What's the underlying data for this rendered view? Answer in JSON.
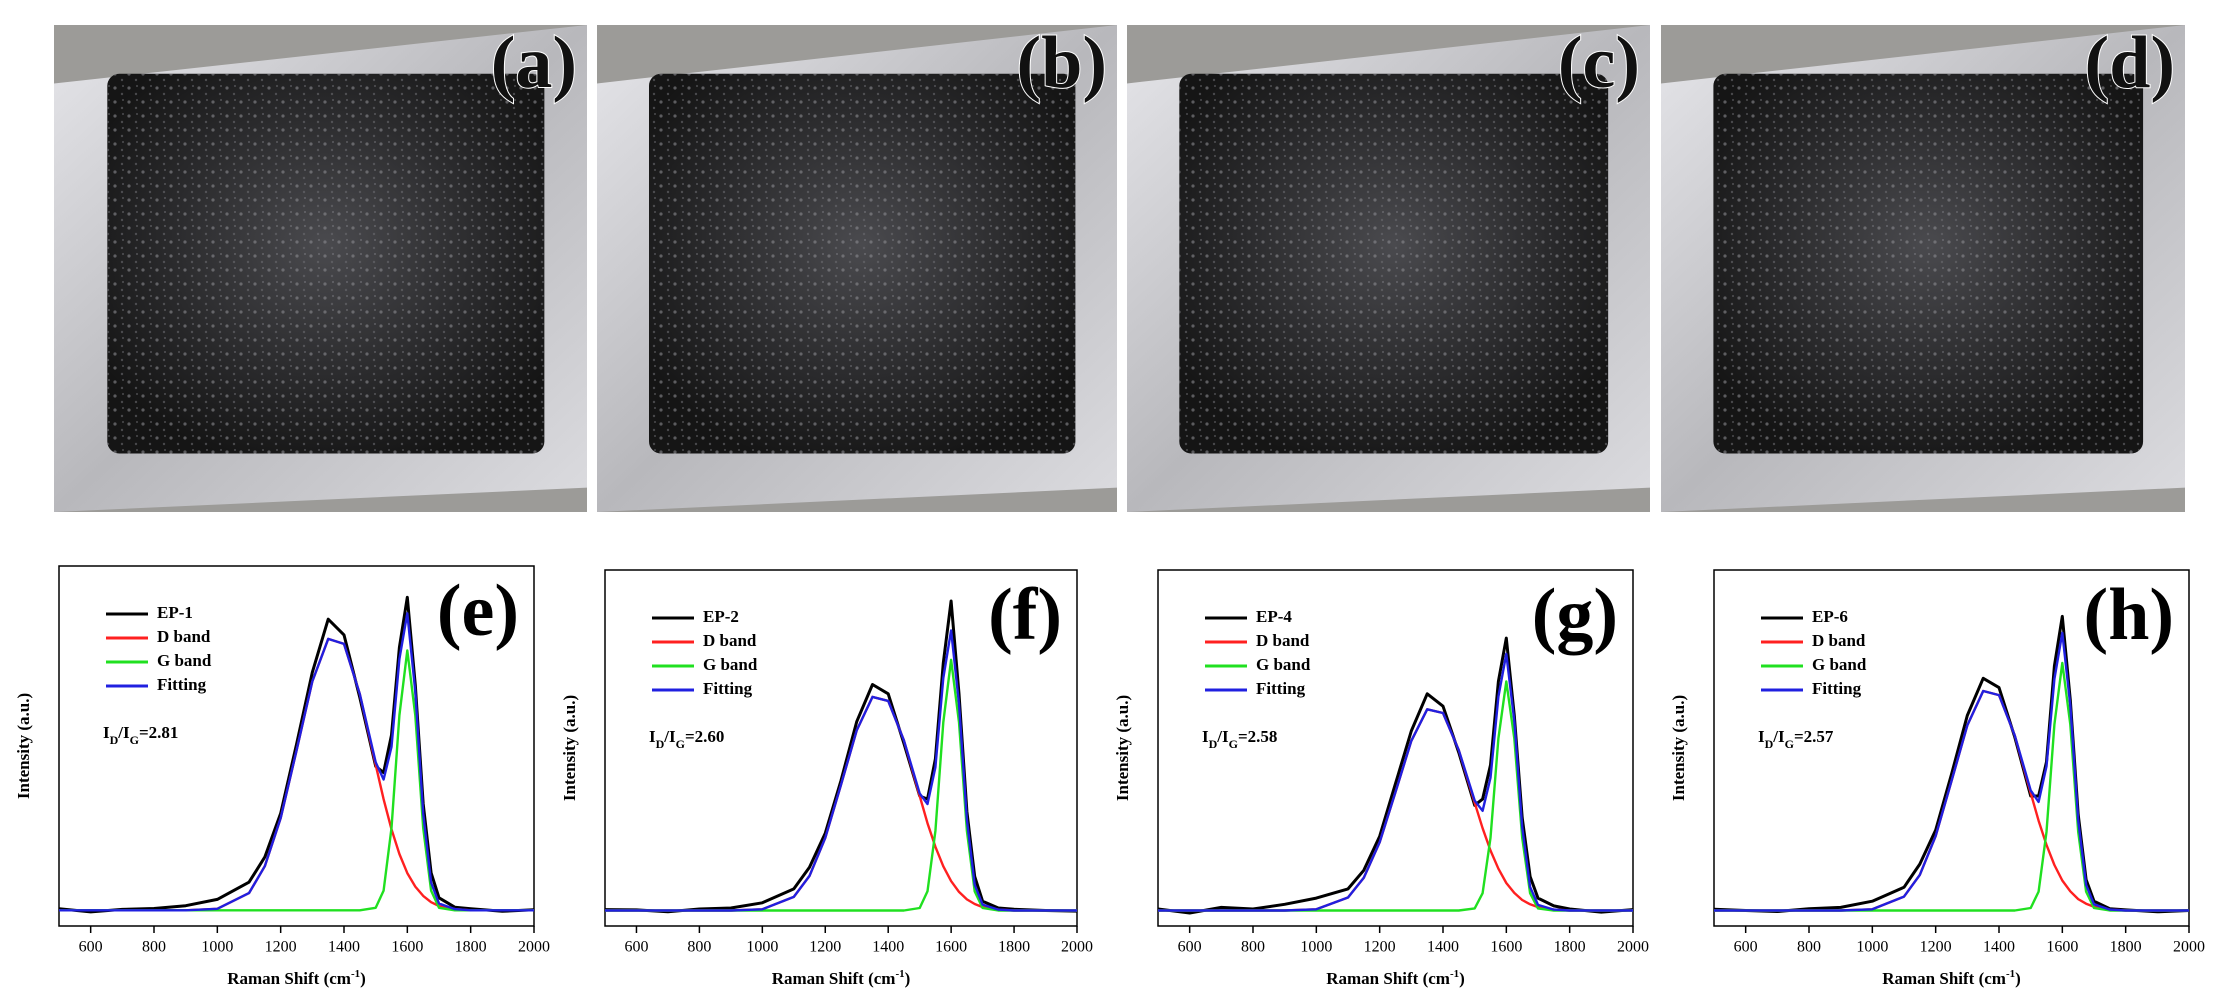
{
  "photos": [
    {
      "label": "(a)"
    },
    {
      "label": "(b)"
    },
    {
      "label": "(c)"
    },
    {
      "label": "(d)"
    }
  ],
  "chart_data": [
    {
      "type": "line",
      "title": "(e)",
      "x": [
        500,
        600,
        700,
        800,
        900,
        1000,
        1100,
        1150,
        1200,
        1250,
        1300,
        1350,
        1400,
        1450,
        1500,
        1525,
        1550,
        1575,
        1600,
        1625,
        1650,
        1675,
        1700,
        1750,
        1800,
        1900,
        2000
      ],
      "xlim": [
        500,
        2000
      ],
      "xticks": [
        600,
        800,
        1000,
        1200,
        1400,
        1600,
        1800,
        2000
      ],
      "ylim": [
        -5,
        110
      ],
      "xlabel_parts": [
        "Raman Shift (cm",
        "-1",
        ")"
      ],
      "ylabel": "Intensity (a.u.)",
      "annotation_parts": [
        "I",
        "D",
        "/I",
        "G",
        "=2.81"
      ],
      "series": [
        {
          "name": "EP-1",
          "color": "#000000",
          "values": [
            0.5,
            -0.5,
            0.3,
            0.6,
            1.5,
            3.5,
            9,
            17,
            31,
            53,
            76,
            93,
            88,
            68,
            46,
            44,
            56,
            84,
            100,
            72,
            34,
            12,
            4,
            1,
            0.5,
            -0.3,
            0.2
          ]
        },
        {
          "name": "D band",
          "color": "#ff2020",
          "values": [
            0,
            0,
            0,
            0,
            0,
            0.5,
            5.5,
            14.1,
            29.5,
            51,
            73.1,
            86.7,
            85.1,
            69.1,
            46.5,
            35.5,
            25.9,
            18,
            11.9,
            7.6,
            4.6,
            2.6,
            1.4,
            0.4,
            0,
            0,
            0
          ]
        },
        {
          "name": "G band",
          "color": "#20e020",
          "values": [
            0,
            0,
            0,
            0,
            0,
            0,
            0,
            0,
            0,
            0,
            0,
            0,
            0,
            0,
            0.8,
            6.3,
            26.3,
            62.3,
            83,
            62.3,
            26.3,
            6.3,
            0.8,
            0,
            0,
            0,
            0
          ]
        },
        {
          "name": "Fitting",
          "color": "#2020e0",
          "values": [
            0,
            0,
            0,
            0,
            0,
            0.5,
            5.5,
            14.1,
            29.5,
            51,
            73.1,
            86.7,
            85.1,
            69.1,
            47.3,
            41.8,
            52.2,
            80.3,
            94.9,
            69.9,
            30.9,
            8.9,
            2.2,
            0.4,
            0,
            0,
            0
          ]
        }
      ]
    },
    {
      "type": "line",
      "title": "(f)",
      "x": [
        500,
        600,
        700,
        800,
        900,
        1000,
        1100,
        1150,
        1200,
        1250,
        1300,
        1350,
        1400,
        1450,
        1500,
        1525,
        1550,
        1575,
        1600,
        1625,
        1650,
        1675,
        1700,
        1750,
        1800,
        1900,
        2000
      ],
      "xlim": [
        500,
        2000
      ],
      "xticks": [
        600,
        800,
        1000,
        1200,
        1400,
        1600,
        1800,
        2000
      ],
      "ylim": [
        -5,
        110
      ],
      "xlabel_parts": [
        "Raman Shift (cm",
        "-1",
        ")"
      ],
      "ylabel": "Intensity (a.u.)",
      "annotation_parts": [
        "I",
        "D",
        "/I",
        "G",
        "=2.60"
      ],
      "series": [
        {
          "name": "EP-2",
          "color": "#000000",
          "values": [
            0.3,
            0.2,
            -0.4,
            0.5,
            0.8,
            2.5,
            7,
            14,
            25,
            42,
            61,
            73,
            70,
            54,
            37,
            36,
            49,
            80,
            100,
            70,
            32,
            11,
            3,
            0.8,
            0.4,
            0,
            -0.2
          ]
        },
        {
          "name": "D band",
          "color": "#ff2020",
          "values": [
            0,
            0,
            0,
            0,
            0,
            0.4,
            4.4,
            11.2,
            23.5,
            40.6,
            58.2,
            69,
            67.7,
            55,
            37,
            28.2,
            20.6,
            14.3,
            9.5,
            6,
            3.6,
            2.1,
            1.1,
            0.3,
            0,
            0,
            0
          ]
        },
        {
          "name": "G band",
          "color": "#20e020",
          "values": [
            0,
            0,
            0,
            0,
            0,
            0,
            0,
            0,
            0,
            0,
            0,
            0,
            0,
            0,
            0.8,
            6.2,
            25.7,
            60.8,
            81,
            60.8,
            25.7,
            6.2,
            0.8,
            0,
            0,
            0,
            0
          ]
        },
        {
          "name": "Fitting",
          "color": "#2020e0",
          "values": [
            0,
            0,
            0,
            0,
            0,
            0.4,
            4.4,
            11.2,
            23.5,
            40.6,
            58.2,
            69,
            67.7,
            55,
            37.8,
            34.4,
            46.3,
            75.1,
            90.5,
            66.8,
            29.3,
            8.3,
            1.9,
            0.3,
            0,
            0,
            0
          ]
        }
      ]
    },
    {
      "type": "line",
      "title": "(g)",
      "x": [
        500,
        600,
        700,
        800,
        900,
        1000,
        1100,
        1150,
        1200,
        1250,
        1300,
        1350,
        1400,
        1450,
        1500,
        1525,
        1550,
        1575,
        1600,
        1625,
        1650,
        1675,
        1700,
        1750,
        1800,
        1900,
        2000
      ],
      "xlim": [
        500,
        2000
      ],
      "xticks": [
        600,
        800,
        1000,
        1200,
        1400,
        1600,
        1800,
        2000
      ],
      "ylim": [
        -5,
        110
      ],
      "xlabel_parts": [
        "Raman Shift (cm",
        "-1",
        ")"
      ],
      "ylabel": "Intensity (a.u.)",
      "annotation_parts": [
        "I",
        "D",
        "/I",
        "G",
        "=2.58"
      ],
      "series": [
        {
          "name": "EP-4",
          "color": "#000000",
          "values": [
            0.5,
            -0.8,
            1,
            0.5,
            2,
            4,
            7,
            13,
            24,
            41,
            58,
            70,
            66,
            51,
            34,
            36,
            47,
            74,
            88,
            63,
            30,
            11,
            4,
            1.5,
            0.5,
            -0.5,
            0.3
          ]
        },
        {
          "name": "D band",
          "color": "#ff2020",
          "values": [
            0,
            0,
            0,
            0,
            0,
            0.4,
            4.2,
            10.6,
            22.1,
            38.3,
            54.8,
            65,
            63.8,
            51.8,
            34.8,
            26.6,
            19.4,
            13.5,
            8.9,
            5.7,
            3.4,
            2,
            1.1,
            0.3,
            0,
            0,
            0
          ]
        },
        {
          "name": "G band",
          "color": "#20e020",
          "values": [
            0,
            0,
            0,
            0,
            0,
            0,
            0,
            0,
            0,
            0,
            0,
            0,
            0,
            0,
            0.7,
            5.6,
            23.5,
            55.6,
            74,
            55.6,
            23.5,
            5.6,
            0.7,
            0,
            0,
            0,
            0
          ]
        },
        {
          "name": "Fitting",
          "color": "#2020e0",
          "values": [
            0,
            0,
            0,
            0,
            0,
            0.4,
            4.2,
            10.6,
            22.1,
            38.3,
            54.8,
            65,
            63.8,
            51.8,
            35.5,
            32.2,
            42.9,
            69.1,
            82.9,
            61.3,
            26.9,
            7.6,
            1.8,
            0.3,
            0,
            0,
            0
          ]
        }
      ]
    },
    {
      "type": "line",
      "title": "(h)",
      "x": [
        500,
        600,
        700,
        800,
        900,
        1000,
        1100,
        1150,
        1200,
        1250,
        1300,
        1350,
        1400,
        1450,
        1500,
        1525,
        1550,
        1575,
        1600,
        1625,
        1650,
        1675,
        1700,
        1750,
        1800,
        1900,
        2000
      ],
      "xlim": [
        500,
        2000
      ],
      "xticks": [
        600,
        800,
        1000,
        1200,
        1400,
        1600,
        1800,
        2000
      ],
      "ylim": [
        -5,
        110
      ],
      "xlabel_parts": [
        "Raman Shift (cm",
        "-1",
        ")"
      ],
      "ylabel": "Intensity (a.u.)",
      "annotation_parts": [
        "I",
        "D",
        "/I",
        "G",
        "=2.57"
      ],
      "series": [
        {
          "name": "EP-6",
          "color": "#000000",
          "values": [
            0.4,
            0,
            -0.3,
            0.6,
            1,
            3,
            7.5,
            15,
            26,
            44,
            63,
            75,
            72,
            56,
            37,
            37,
            48,
            79,
            95,
            68,
            31,
            10,
            3,
            0.6,
            0.2,
            -0.4,
            0
          ]
        },
        {
          "name": "D band",
          "color": "#ff2020",
          "values": [
            0,
            0,
            0,
            0,
            0,
            0.4,
            4.5,
            11.5,
            24.1,
            41.8,
            59.8,
            70.9,
            69.6,
            56.5,
            38,
            29,
            21.2,
            14.7,
            9.7,
            6.2,
            3.7,
            2.2,
            1.2,
            0.3,
            0,
            0,
            0
          ]
        },
        {
          "name": "G band",
          "color": "#20e020",
          "values": [
            0,
            0,
            0,
            0,
            0,
            0,
            0,
            0,
            0,
            0,
            0,
            0,
            0,
            0,
            0.8,
            6.1,
            25.4,
            60.1,
            80,
            60.1,
            25.4,
            6.1,
            0.8,
            0,
            0,
            0,
            0
          ]
        },
        {
          "name": "Fitting",
          "color": "#2020e0",
          "values": [
            0,
            0,
            0,
            0,
            0,
            0.4,
            4.5,
            11.5,
            24.1,
            41.8,
            59.8,
            70.9,
            69.6,
            56.5,
            38.8,
            35.1,
            46.6,
            74.8,
            89.7,
            66.3,
            29.1,
            8.3,
            2,
            0.3,
            0,
            0,
            0
          ]
        }
      ]
    }
  ]
}
